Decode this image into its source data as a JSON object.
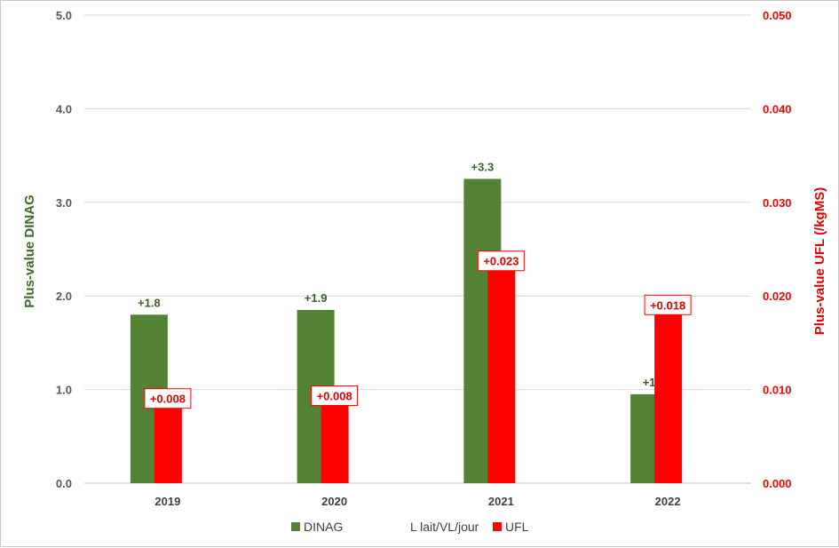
{
  "colors": {
    "dinag": "#548235",
    "ufl": "#ff0000",
    "grid": "#d9d9d9",
    "left_axis_label": "#3c6a23",
    "right_axis_label": "#e00000"
  },
  "chart_data": {
    "type": "bar",
    "categories": [
      "2019",
      "2020",
      "2021",
      "2022"
    ],
    "series": [
      {
        "name": "DINAG",
        "axis": "left",
        "values": [
          1.8,
          1.85,
          3.25,
          0.95
        ],
        "labels": [
          "+1.8",
          "+1.9",
          "+3.3",
          "+1"
        ]
      },
      {
        "name": "UFL",
        "axis": "right",
        "values": [
          0.008,
          0.0083,
          0.0227,
          0.018
        ],
        "labels": [
          "+0.008",
          "+0.008",
          "+0.023",
          "+0.018"
        ]
      }
    ],
    "left_axis": {
      "label": "Plus-value DINAG",
      "range": [
        0,
        5
      ],
      "ticks": [
        "0.0",
        "1.0",
        "2.0",
        "3.0",
        "4.0",
        "5.0"
      ]
    },
    "right_axis": {
      "label": "Plus-value UFL (/kgMS)",
      "range": [
        0,
        0.05
      ],
      "ticks": [
        "0.000",
        "0.010",
        "0.020",
        "0.030",
        "0.040",
        "0.050"
      ]
    },
    "legend": {
      "placement": "bottom",
      "entries": [
        "DINAG",
        "L lait/VL/jour",
        "UFL"
      ]
    },
    "grid": true
  }
}
